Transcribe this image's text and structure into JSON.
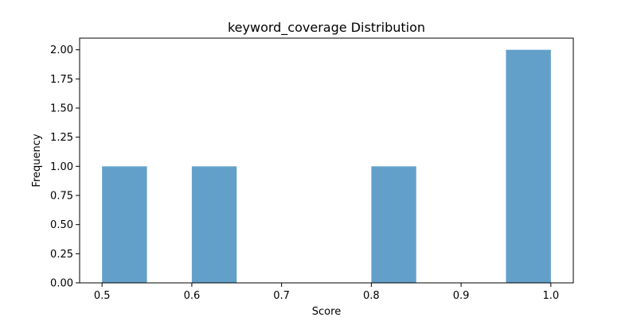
{
  "chart_data": {
    "type": "bar",
    "title": "keyword_coverage Distribution",
    "xlabel": "Score",
    "ylabel": "Frequency",
    "xlim": [
      0.475,
      1.025
    ],
    "ylim": [
      0,
      2.1
    ],
    "xticks": [
      "0.5",
      "0.6",
      "0.7",
      "0.8",
      "0.9",
      "1.0"
    ],
    "xtick_values": [
      0.5,
      0.6,
      0.7,
      0.8,
      0.9,
      1.0
    ],
    "yticks": [
      "0.00",
      "0.25",
      "0.50",
      "0.75",
      "1.00",
      "1.25",
      "1.50",
      "1.75",
      "2.00"
    ],
    "ytick_values": [
      0,
      0.25,
      0.5,
      0.75,
      1.0,
      1.25,
      1.5,
      1.75,
      2.0
    ],
    "bins": [
      {
        "x0": 0.5,
        "x1": 0.55,
        "value": 1
      },
      {
        "x0": 0.6,
        "x1": 0.65,
        "value": 1
      },
      {
        "x0": 0.8,
        "x1": 0.85,
        "value": 1
      },
      {
        "x0": 0.95,
        "x1": 1.0,
        "value": 2
      }
    ],
    "bar_color": "#1f77b4",
    "bar_opacity": 0.7,
    "grid": false,
    "legend": "none"
  }
}
